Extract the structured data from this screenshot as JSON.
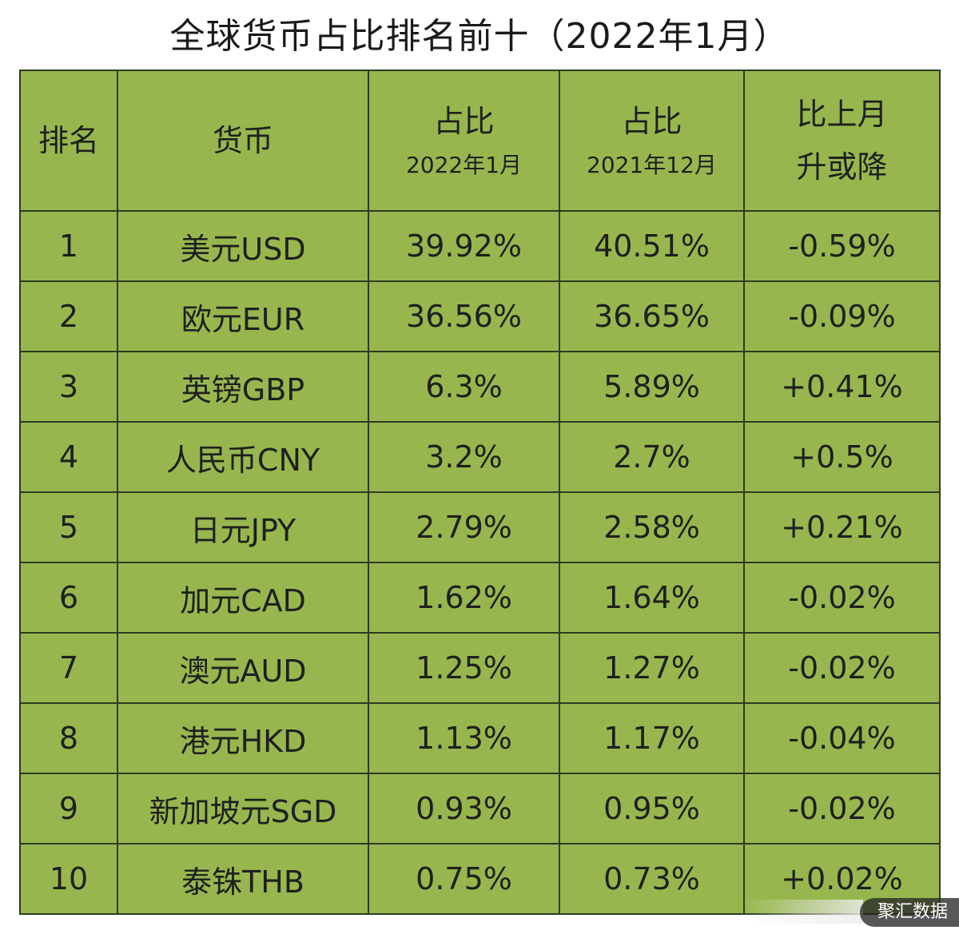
{
  "chart_data": {
    "type": "table",
    "title": "全球货币占比排名前十（2022年1月）",
    "columns": {
      "rank": "排名",
      "currency": "货币",
      "jan_main": "占比",
      "jan_sub": "2022年1月",
      "dec_main": "占比",
      "dec_sub": "2021年12月",
      "change_line1": "比上月",
      "change_line2": "升或降"
    },
    "rows": [
      {
        "rank": "1",
        "currency": "美元USD",
        "jan": "39.92%",
        "dec": "40.51%",
        "change": "-0.59%"
      },
      {
        "rank": "2",
        "currency": "欧元EUR",
        "jan": "36.56%",
        "dec": "36.65%",
        "change": "-0.09%"
      },
      {
        "rank": "3",
        "currency": "英镑GBP",
        "jan": "6.3%",
        "dec": "5.89%",
        "change": "+0.41%"
      },
      {
        "rank": "4",
        "currency": "人民币CNY",
        "jan": "3.2%",
        "dec": "2.7%",
        "change": "+0.5%"
      },
      {
        "rank": "5",
        "currency": "日元JPY",
        "jan": "2.79%",
        "dec": "2.58%",
        "change": "+0.21%"
      },
      {
        "rank": "6",
        "currency": "加元CAD",
        "jan": "1.62%",
        "dec": "1.64%",
        "change": "-0.02%"
      },
      {
        "rank": "7",
        "currency": "澳元AUD",
        "jan": "1.25%",
        "dec": "1.27%",
        "change": "-0.02%"
      },
      {
        "rank": "8",
        "currency": "港元HKD",
        "jan": "1.13%",
        "dec": "1.17%",
        "change": "-0.04%"
      },
      {
        "rank": "9",
        "currency": "新加坡元SGD",
        "jan": "0.93%",
        "dec": "0.95%",
        "change": "-0.02%"
      },
      {
        "rank": "10",
        "currency": "泰铢THB",
        "jan": "0.75%",
        "dec": "0.73%",
        "change": "+0.02%"
      }
    ]
  },
  "colors": {
    "table_background": "#97b74e",
    "grid_line": "#2f3a20",
    "text": "#1f1f1f"
  },
  "watermark": {
    "text": "聚汇数据"
  }
}
